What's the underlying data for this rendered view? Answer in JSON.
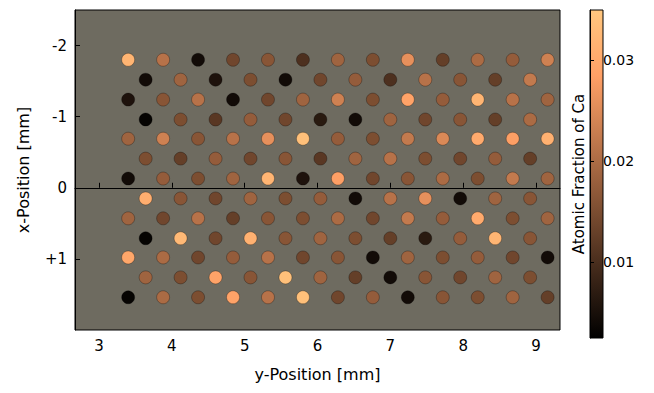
{
  "chart_data": {
    "type": "scatter",
    "xlabel": "y-Position [mm]",
    "ylabel": "x-Position [mm]",
    "xlim": [
      2.67,
      9.33
    ],
    "ylim": [
      2.0,
      -2.5
    ],
    "xticks": [
      3,
      4,
      5,
      6,
      7,
      8,
      9
    ],
    "yticks": [
      -2,
      -1,
      0,
      {
        "value": 1,
        "label": "+1"
      }
    ],
    "grid": false,
    "marker": "circle",
    "colorbar": {
      "label": "Atomic Fraction of Ca",
      "range": [
        0.0025,
        0.035
      ],
      "ticks": [
        0.01,
        0.02,
        0.03
      ]
    },
    "points": [
      [
        3.4,
        -1.8,
        0.03
      ],
      [
        3.88,
        -1.8,
        0.018
      ],
      [
        4.36,
        -1.8,
        0.004
      ],
      [
        4.84,
        -1.8,
        0.012
      ],
      [
        5.32,
        -1.8,
        0.014
      ],
      [
        5.8,
        -1.8,
        0.009
      ],
      [
        6.28,
        -1.8,
        0.016
      ],
      [
        6.76,
        -1.8,
        0.013
      ],
      [
        7.24,
        -1.8,
        0.022
      ],
      [
        7.72,
        -1.8,
        0.011
      ],
      [
        8.2,
        -1.8,
        0.017
      ],
      [
        8.68,
        -1.8,
        0.015
      ],
      [
        9.16,
        -1.8,
        0.02
      ],
      [
        3.64,
        -1.52,
        0.004
      ],
      [
        4.12,
        -1.52,
        0.016
      ],
      [
        4.6,
        -1.52,
        0.005
      ],
      [
        5.08,
        -1.52,
        0.013
      ],
      [
        5.56,
        -1.52,
        0.004
      ],
      [
        6.04,
        -1.52,
        0.012
      ],
      [
        6.52,
        -1.52,
        0.015
      ],
      [
        7.0,
        -1.52,
        0.009
      ],
      [
        7.48,
        -1.52,
        0.018
      ],
      [
        7.96,
        -1.52,
        0.014
      ],
      [
        8.44,
        -1.52,
        0.011
      ],
      [
        8.92,
        -1.52,
        0.019
      ],
      [
        3.4,
        -1.24,
        0.005
      ],
      [
        3.88,
        -1.24,
        0.014
      ],
      [
        4.36,
        -1.24,
        0.018
      ],
      [
        4.84,
        -1.24,
        0.004
      ],
      [
        5.32,
        -1.24,
        0.012
      ],
      [
        5.8,
        -1.24,
        0.016
      ],
      [
        6.28,
        -1.24,
        0.02
      ],
      [
        6.76,
        -1.24,
        0.013
      ],
      [
        7.24,
        -1.24,
        0.025
      ],
      [
        7.72,
        -1.24,
        0.015
      ],
      [
        8.2,
        -1.24,
        0.03
      ],
      [
        8.68,
        -1.24,
        0.018
      ],
      [
        9.16,
        -1.24,
        0.016
      ],
      [
        3.64,
        -0.96,
        0.003
      ],
      [
        4.12,
        -0.96,
        0.013
      ],
      [
        4.6,
        -0.96,
        0.01
      ],
      [
        5.08,
        -0.96,
        0.015
      ],
      [
        5.56,
        -0.96,
        0.012
      ],
      [
        6.04,
        -0.96,
        0.006
      ],
      [
        6.52,
        -0.96,
        0.004
      ],
      [
        7.0,
        -0.96,
        0.016
      ],
      [
        7.48,
        -0.96,
        0.012
      ],
      [
        7.96,
        -0.96,
        0.014
      ],
      [
        8.44,
        -0.96,
        0.011
      ],
      [
        8.92,
        -0.96,
        0.017
      ],
      [
        3.4,
        -0.69,
        0.016
      ],
      [
        3.88,
        -0.69,
        0.02
      ],
      [
        4.36,
        -0.69,
        0.014
      ],
      [
        4.84,
        -0.69,
        0.018
      ],
      [
        5.32,
        -0.69,
        0.022
      ],
      [
        5.8,
        -0.69,
        0.033
      ],
      [
        6.28,
        -0.69,
        0.015
      ],
      [
        6.76,
        -0.69,
        0.013
      ],
      [
        7.24,
        -0.69,
        0.019
      ],
      [
        7.72,
        -0.69,
        0.021
      ],
      [
        8.2,
        -0.69,
        0.027
      ],
      [
        8.68,
        -0.69,
        0.024
      ],
      [
        9.16,
        -0.69,
        0.029
      ],
      [
        3.64,
        -0.41,
        0.013
      ],
      [
        4.12,
        -0.41,
        0.011
      ],
      [
        4.6,
        -0.41,
        0.015
      ],
      [
        5.08,
        -0.41,
        0.012
      ],
      [
        5.56,
        -0.41,
        0.014
      ],
      [
        6.04,
        -0.41,
        0.01
      ],
      [
        6.52,
        -0.41,
        0.016
      ],
      [
        7.0,
        -0.41,
        0.018
      ],
      [
        7.48,
        -0.41,
        0.013
      ],
      [
        7.96,
        -0.41,
        0.012
      ],
      [
        8.44,
        -0.41,
        0.015
      ],
      [
        8.92,
        -0.41,
        0.011
      ],
      [
        3.4,
        -0.13,
        0.004
      ],
      [
        3.88,
        -0.13,
        0.015
      ],
      [
        4.36,
        -0.13,
        0.013
      ],
      [
        4.84,
        -0.13,
        0.016
      ],
      [
        5.32,
        -0.13,
        0.03
      ],
      [
        5.8,
        -0.13,
        0.005
      ],
      [
        6.28,
        -0.13,
        0.024
      ],
      [
        6.76,
        -0.13,
        0.012
      ],
      [
        7.24,
        -0.13,
        0.014
      ],
      [
        7.72,
        -0.13,
        0.017
      ],
      [
        8.2,
        -0.13,
        0.013
      ],
      [
        8.68,
        -0.13,
        0.019
      ],
      [
        9.16,
        -0.13,
        0.016
      ],
      [
        3.64,
        0.15,
        0.028
      ],
      [
        4.12,
        0.15,
        0.014
      ],
      [
        4.6,
        0.15,
        0.012
      ],
      [
        5.08,
        0.15,
        0.016
      ],
      [
        5.56,
        0.15,
        0.013
      ],
      [
        6.04,
        0.15,
        0.015
      ],
      [
        6.52,
        0.15,
        0.004
      ],
      [
        7.0,
        0.15,
        0.018
      ],
      [
        7.48,
        0.15,
        0.022
      ],
      [
        7.96,
        0.15,
        0.004
      ],
      [
        8.44,
        0.15,
        0.016
      ],
      [
        8.92,
        0.15,
        0.014
      ],
      [
        3.4,
        0.43,
        0.016
      ],
      [
        3.88,
        0.43,
        0.012
      ],
      [
        4.36,
        0.43,
        0.018
      ],
      [
        4.84,
        0.43,
        0.011
      ],
      [
        5.32,
        0.43,
        0.014
      ],
      [
        5.8,
        0.43,
        0.013
      ],
      [
        6.28,
        0.43,
        0.017
      ],
      [
        6.76,
        0.43,
        0.012
      ],
      [
        7.24,
        0.43,
        0.019
      ],
      [
        7.72,
        0.43,
        0.015
      ],
      [
        8.2,
        0.43,
        0.027
      ],
      [
        8.68,
        0.43,
        0.013
      ],
      [
        9.16,
        0.43,
        0.016
      ],
      [
        3.64,
        0.71,
        0.003
      ],
      [
        4.12,
        0.71,
        0.031
      ],
      [
        4.6,
        0.71,
        0.012
      ],
      [
        5.08,
        0.71,
        0.029
      ],
      [
        5.56,
        0.71,
        0.014
      ],
      [
        6.04,
        0.71,
        0.016
      ],
      [
        6.52,
        0.71,
        0.013
      ],
      [
        7.0,
        0.71,
        0.011
      ],
      [
        7.48,
        0.71,
        0.006
      ],
      [
        7.96,
        0.71,
        0.015
      ],
      [
        8.44,
        0.71,
        0.03
      ],
      [
        8.92,
        0.71,
        0.014
      ],
      [
        3.4,
        0.98,
        0.026
      ],
      [
        3.88,
        0.98,
        0.017
      ],
      [
        4.36,
        0.98,
        0.012
      ],
      [
        4.84,
        0.98,
        0.015
      ],
      [
        5.32,
        0.98,
        0.018
      ],
      [
        5.8,
        0.98,
        0.012
      ],
      [
        6.28,
        0.98,
        0.014
      ],
      [
        6.76,
        0.98,
        0.004
      ],
      [
        7.24,
        0.98,
        0.016
      ],
      [
        7.72,
        0.98,
        0.013
      ],
      [
        8.2,
        0.98,
        0.015
      ],
      [
        8.68,
        0.98,
        0.012
      ],
      [
        9.16,
        0.98,
        0.004
      ],
      [
        3.64,
        1.26,
        0.016
      ],
      [
        4.12,
        1.26,
        0.013
      ],
      [
        4.6,
        1.26,
        0.025
      ],
      [
        5.08,
        1.26,
        0.014
      ],
      [
        5.56,
        1.26,
        0.033
      ],
      [
        6.04,
        1.26,
        0.016
      ],
      [
        6.52,
        1.26,
        0.011
      ],
      [
        7.0,
        1.26,
        0.004
      ],
      [
        7.48,
        1.26,
        0.014
      ],
      [
        7.96,
        1.26,
        0.012
      ],
      [
        8.44,
        1.26,
        0.016
      ],
      [
        8.92,
        1.26,
        0.013
      ],
      [
        3.4,
        1.54,
        0.003
      ],
      [
        3.88,
        1.54,
        0.017
      ],
      [
        4.36,
        1.54,
        0.013
      ],
      [
        4.84,
        1.54,
        0.025
      ],
      [
        5.32,
        1.54,
        0.018
      ],
      [
        5.8,
        1.54,
        0.033
      ],
      [
        6.28,
        1.54,
        0.012
      ],
      [
        6.76,
        1.54,
        0.015
      ],
      [
        7.24,
        1.54,
        0.004
      ],
      [
        7.72,
        1.54,
        0.014
      ],
      [
        8.2,
        1.54,
        0.013
      ],
      [
        8.68,
        1.54,
        0.016
      ],
      [
        9.16,
        1.54,
        0.011
      ]
    ]
  }
}
